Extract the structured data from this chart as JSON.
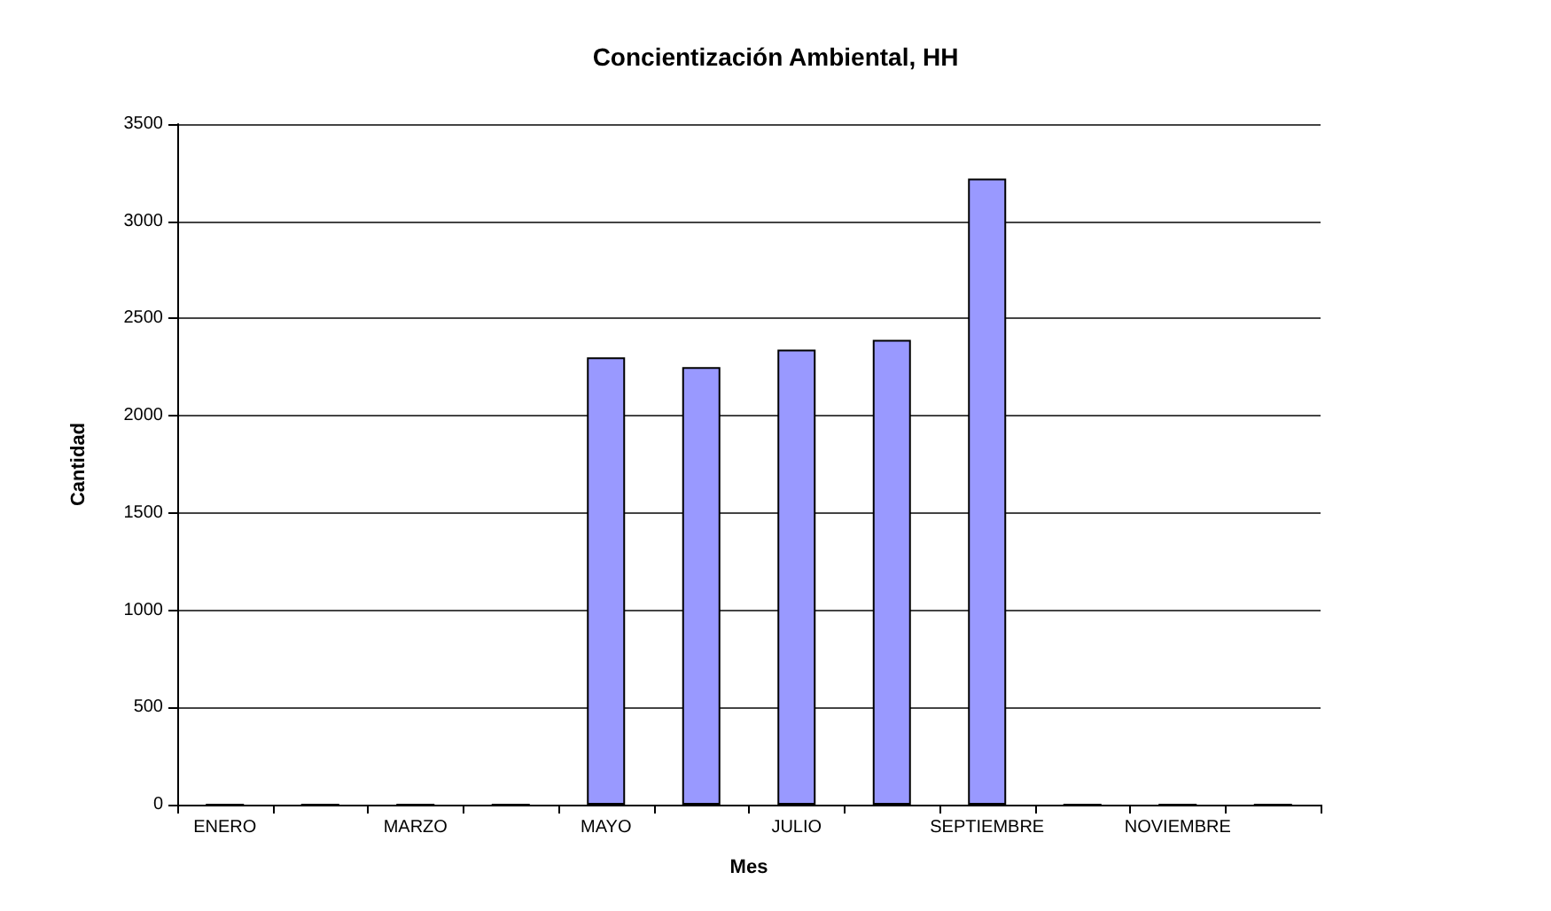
{
  "chart_data": {
    "type": "bar",
    "title": "Concientización Ambiental, HH",
    "xlabel": "Mes",
    "ylabel": "Cantidad",
    "categories": [
      "ENERO",
      null,
      "MARZO",
      null,
      "MAYO",
      null,
      "JULIO",
      null,
      "SEPTIEMBRE",
      null,
      "NOVIEMBRE",
      null
    ],
    "values": [
      0,
      0,
      0,
      0,
      2300,
      2250,
      2340,
      2390,
      3220,
      0,
      0,
      0
    ],
    "color": "#9999ff",
    "ylim": [
      0,
      3500
    ],
    "yticks": [
      0,
      500,
      1000,
      1500,
      2000,
      2500,
      3000,
      3500
    ],
    "grid": "y"
  }
}
